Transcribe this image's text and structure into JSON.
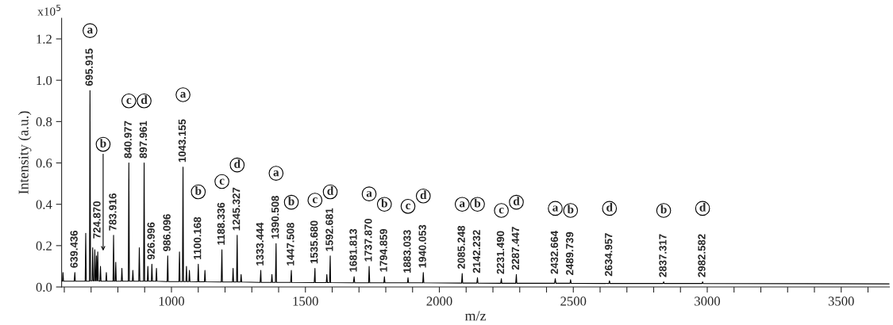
{
  "chart_data": {
    "type": "line",
    "xlabel": "m/z",
    "ylabel": "Intensity (a.u.)",
    "xlim": [
      590,
      3680
    ],
    "ylim": [
      0,
      1.3
    ],
    "xticks": [
      {
        "value": 600,
        "label": null
      },
      {
        "value": 700,
        "label": null
      },
      {
        "value": 800,
        "label": null
      },
      {
        "value": 900,
        "label": null
      },
      1000,
      {
        "value": 1100,
        "label": null
      },
      {
        "value": 1200,
        "label": null
      },
      {
        "value": 1300,
        "label": null
      },
      {
        "value": 1400,
        "label": null
      },
      1500,
      {
        "value": 1600,
        "label": null
      },
      {
        "value": 1700,
        "label": null
      },
      {
        "value": 1800,
        "label": null
      },
      {
        "value": 1900,
        "label": null
      },
      2000,
      {
        "value": 2100,
        "label": null
      },
      {
        "value": 2200,
        "label": null
      },
      {
        "value": 2300,
        "label": null
      },
      {
        "value": 2400,
        "label": null
      },
      2500,
      {
        "value": 2600,
        "label": null
      },
      {
        "value": 2700,
        "label": null
      },
      {
        "value": 2800,
        "label": null
      },
      {
        "value": 2900,
        "label": null
      },
      3000,
      {
        "value": 3100,
        "label": null
      },
      {
        "value": 3200,
        "label": null
      },
      {
        "value": 3300,
        "label": null
      },
      {
        "value": 3400,
        "label": null
      },
      3500,
      {
        "value": 3600,
        "label": null
      }
    ],
    "yticks": [
      {
        "value": 0,
        "label": "0.0"
      },
      {
        "value": 0.2,
        "label": "0.2"
      },
      {
        "value": 0.4,
        "label": "0.4"
      },
      {
        "value": 0.6,
        "label": "0.6"
      },
      {
        "value": 0.8,
        "label": "0.8"
      },
      {
        "value": 1.0,
        "label": "1.0"
      },
      {
        "value": 1.2,
        "label": "1.2"
      }
    ],
    "grid": false,
    "legend": false,
    "marker": "none",
    "line_style": "solid",
    "series": [
      {
        "color": "#000000",
        "x": [
          590,
          593,
          595,
          597,
          637,
          639.436,
          641,
          678,
          680,
          682,
          694,
          695.915,
          698,
          704,
          706,
          708,
          712,
          714,
          716,
          718,
          720,
          722,
          723,
          724.87,
          727,
          733,
          735,
          737,
          755,
          757,
          759,
          782,
          783.916,
          786,
          790,
          792,
          794,
          813,
          815,
          817,
          839,
          840.977,
          843,
          854,
          856,
          858,
          878,
          880,
          882,
          896,
          897.961,
          900,
          910,
          912,
          914,
          925,
          926.996,
          929,
          942,
          944,
          946,
          984,
          986.096,
          988,
          1028,
          1030,
          1032,
          1041,
          1043.155,
          1045,
          1054,
          1056,
          1058,
          1065,
          1067,
          1069,
          1098,
          1100.168,
          1102,
          1123,
          1125,
          1127,
          1186,
          1188.336,
          1190,
          1228,
          1230,
          1232,
          1243,
          1245.327,
          1247,
          1258,
          1260,
          1262,
          1331,
          1333.444,
          1335,
          1373,
          1375,
          1377,
          1388,
          1390.508,
          1392,
          1445,
          1447.508,
          1449,
          1533,
          1535.68,
          1537,
          1578,
          1580,
          1582,
          1590,
          1592.681,
          1594,
          1679,
          1681.813,
          1684,
          1736,
          1737.87,
          1740,
          1793,
          1794.859,
          1797,
          1881,
          1883.033,
          1885,
          1938,
          1940.053,
          1942,
          2083,
          2085.248,
          2087,
          2140,
          2142.232,
          2144,
          2229,
          2231.49,
          2233,
          2285,
          2287.447,
          2289,
          2430,
          2432.664,
          2435,
          2488,
          2489.739,
          2492,
          2633,
          2634.957,
          2637,
          2835,
          2837.317,
          2839,
          2981,
          2982.582,
          2985,
          3680
        ],
        "values": [
          0.03,
          0.028,
          0.07,
          0.028,
          0.028,
          0.07,
          0.028,
          0.028,
          0.26,
          0.028,
          0.028,
          0.95,
          0.03,
          0.03,
          0.19,
          0.03,
          0.03,
          0.18,
          0.03,
          0.03,
          0.15,
          0.03,
          0.03,
          0.17,
          0.03,
          0.028,
          0.1,
          0.028,
          0.028,
          0.07,
          0.028,
          0.028,
          0.25,
          0.028,
          0.028,
          0.12,
          0.028,
          0.028,
          0.09,
          0.028,
          0.028,
          0.6,
          0.028,
          0.028,
          0.08,
          0.028,
          0.028,
          0.19,
          0.028,
          0.028,
          0.6,
          0.028,
          0.028,
          0.1,
          0.028,
          0.028,
          0.11,
          0.028,
          0.028,
          0.09,
          0.028,
          0.026,
          0.15,
          0.026,
          0.026,
          0.17,
          0.026,
          0.026,
          0.58,
          0.026,
          0.026,
          0.1,
          0.026,
          0.026,
          0.08,
          0.026,
          0.025,
          0.11,
          0.025,
          0.025,
          0.08,
          0.025,
          0.024,
          0.18,
          0.024,
          0.024,
          0.09,
          0.024,
          0.024,
          0.25,
          0.024,
          0.024,
          0.06,
          0.024,
          0.022,
          0.08,
          0.022,
          0.022,
          0.06,
          0.022,
          0.022,
          0.21,
          0.022,
          0.022,
          0.08,
          0.022,
          0.021,
          0.09,
          0.021,
          0.021,
          0.06,
          0.021,
          0.021,
          0.15,
          0.021,
          0.02,
          0.05,
          0.02,
          0.02,
          0.1,
          0.02,
          0.02,
          0.05,
          0.02,
          0.02,
          0.045,
          0.02,
          0.02,
          0.07,
          0.02,
          0.019,
          0.065,
          0.019,
          0.019,
          0.045,
          0.019,
          0.018,
          0.04,
          0.018,
          0.018,
          0.06,
          0.018,
          0.018,
          0.04,
          0.018,
          0.018,
          0.035,
          0.018,
          0.017,
          0.03,
          0.017,
          0.017,
          0.025,
          0.017,
          0.017,
          0.025,
          0.017,
          0.015
        ]
      }
    ],
    "annotations": [
      "x10$^{5}$",
      {
        "text": "639.436",
        "x": 639.436,
        "y": 0.07
      },
      {
        "text": "695.915",
        "x": 695.915,
        "y": 0.95
      },
      {
        "text": "a",
        "x": 695.915,
        "y": 1.24
      },
      {
        "text": "724.870",
        "x": 724.87,
        "y": 0.17
      },
      {
        "text": "b",
        "x": 745,
        "y": 0.69
      },
      {
        "text": "783.916",
        "x": 783.916,
        "y": 0.25
      },
      {
        "text": "840.977",
        "x": 840.977,
        "y": 0.6
      },
      {
        "text": "c",
        "x": 840.977,
        "y": 0.9
      },
      {
        "text": "897.961",
        "x": 897.961,
        "y": 0.6
      },
      {
        "text": "d",
        "x": 897.961,
        "y": 0.9
      },
      {
        "text": "926.996",
        "x": 926.996,
        "y": 0.11
      },
      {
        "text": "986.096",
        "x": 986.096,
        "y": 0.15
      },
      {
        "text": "1043.155",
        "x": 1043.155,
        "y": 0.58
      },
      {
        "text": "a",
        "x": 1043.155,
        "y": 0.93
      },
      {
        "text": "1100.168",
        "x": 1100.168,
        "y": 0.11
      },
      {
        "text": "b",
        "x": 1100.168,
        "y": 0.46
      },
      {
        "text": "1188.336",
        "x": 1188.336,
        "y": 0.18
      },
      {
        "text": "c",
        "x": 1188.336,
        "y": 0.51
      },
      {
        "text": "1245.327",
        "x": 1245.327,
        "y": 0.25
      },
      {
        "text": "d",
        "x": 1245.327,
        "y": 0.59
      },
      {
        "text": "1333.444",
        "x": 1333.444,
        "y": 0.08
      },
      {
        "text": "1390.508",
        "x": 1390.508,
        "y": 0.21
      },
      {
        "text": "a",
        "x": 1390.508,
        "y": 0.55
      },
      {
        "text": "1447.508",
        "x": 1447.508,
        "y": 0.08
      },
      {
        "text": "b",
        "x": 1447.508,
        "y": 0.41
      },
      {
        "text": "1535.680",
        "x": 1535.68,
        "y": 0.09
      },
      {
        "text": "c",
        "x": 1535.68,
        "y": 0.42
      },
      {
        "text": "1592.681",
        "x": 1592.681,
        "y": 0.15
      },
      {
        "text": "d",
        "x": 1592.681,
        "y": 0.46
      },
      {
        "text": "1681.813",
        "x": 1681.813,
        "y": 0.05
      },
      {
        "text": "1737.870",
        "x": 1737.87,
        "y": 0.1
      },
      {
        "text": "a",
        "x": 1737.87,
        "y": 0.45
      },
      {
        "text": "1794.859",
        "x": 1794.859,
        "y": 0.05
      },
      {
        "text": "b",
        "x": 1794.859,
        "y": 0.4
      },
      {
        "text": "1883.033",
        "x": 1883.033,
        "y": 0.045
      },
      {
        "text": "c",
        "x": 1883.033,
        "y": 0.39
      },
      {
        "text": "1940.053",
        "x": 1940.053,
        "y": 0.07
      },
      {
        "text": "d",
        "x": 1940.053,
        "y": 0.44
      },
      {
        "text": "2085.248",
        "x": 2085.248,
        "y": 0.065
      },
      {
        "text": "a",
        "x": 2085.248,
        "y": 0.4
      },
      {
        "text": "2142.232",
        "x": 2142.232,
        "y": 0.045
      },
      {
        "text": "b",
        "x": 2142.232,
        "y": 0.4
      },
      {
        "text": "2231.490",
        "x": 2231.49,
        "y": 0.04
      },
      {
        "text": "c",
        "x": 2231.49,
        "y": 0.37
      },
      {
        "text": "2287.447",
        "x": 2287.447,
        "y": 0.06
      },
      {
        "text": "d",
        "x": 2287.447,
        "y": 0.41
      },
      {
        "text": "2432.664",
        "x": 2432.664,
        "y": 0.04
      },
      {
        "text": "a",
        "x": 2432.664,
        "y": 0.38
      },
      {
        "text": "2489.739",
        "x": 2489.739,
        "y": 0.035
      },
      {
        "text": "b",
        "x": 2489.739,
        "y": 0.37
      },
      {
        "text": "2634.957",
        "x": 2634.957,
        "y": 0.03
      },
      {
        "text": "d",
        "x": 2634.957,
        "y": 0.38
      },
      {
        "text": "2837.317",
        "x": 2837.317,
        "y": 0.025
      },
      {
        "text": "b",
        "x": 2837.317,
        "y": 0.37
      },
      {
        "text": "2982.582",
        "x": 2982.582,
        "y": 0.025
      },
      {
        "text": "d",
        "x": 2982.582,
        "y": 0.38
      }
    ]
  }
}
